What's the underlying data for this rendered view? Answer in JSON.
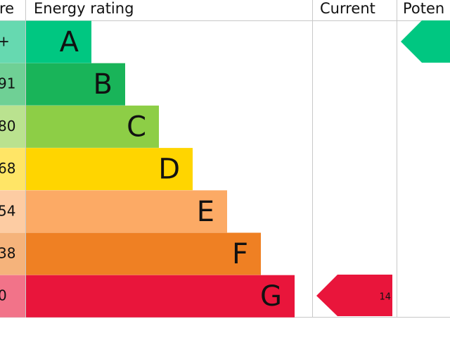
{
  "header": {
    "score": "re",
    "rating": "Energy rating",
    "current": "Current",
    "potential": "Poten"
  },
  "rows": [
    {
      "score": "+",
      "band": "A"
    },
    {
      "score": "91",
      "band": "B"
    },
    {
      "score": "80",
      "band": "C"
    },
    {
      "score": "68",
      "band": "D"
    },
    {
      "score": "54",
      "band": "E"
    },
    {
      "score": "38",
      "band": "F"
    },
    {
      "score": "0",
      "band": "G"
    }
  ],
  "current": {
    "value": "14"
  }
}
